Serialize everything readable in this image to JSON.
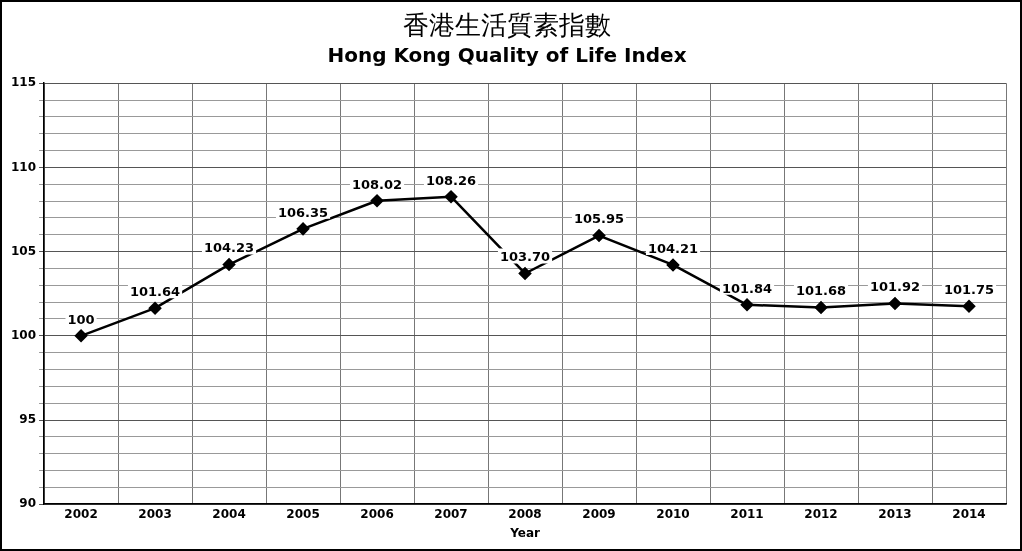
{
  "chart_data": {
    "type": "line",
    "title": "香港生活質素指數",
    "subtitle": "Hong Kong Quality of Life Index",
    "xlabel": "Year",
    "categories": [
      "2002",
      "2003",
      "2004",
      "2005",
      "2006",
      "2007",
      "2008",
      "2009",
      "2010",
      "2011",
      "2012",
      "2013",
      "2014"
    ],
    "series": [
      {
        "color": "#000000",
        "values": [
          100,
          101.64,
          104.23,
          106.35,
          108.02,
          108.26,
          103.7,
          105.95,
          104.21,
          101.84,
          101.68,
          101.92,
          101.75
        ],
        "value_labels": [
          "100",
          "101.64",
          "104.23",
          "106.35",
          "108.02",
          "108.26",
          "103.70",
          "105.95",
          "104.21",
          "101.84",
          "101.68",
          "101.92",
          "101.75"
        ]
      }
    ],
    "ylim": [
      90,
      115
    ],
    "yticks": [
      90,
      {
        "value": 91,
        "label": null
      },
      {
        "value": 92,
        "label": null
      },
      {
        "value": 93,
        "label": null
      },
      {
        "value": 94,
        "label": null
      },
      95,
      {
        "value": 96,
        "label": null
      },
      {
        "value": 97,
        "label": null
      },
      {
        "value": 98,
        "label": null
      },
      {
        "value": 99,
        "label": null
      },
      100,
      {
        "value": 101,
        "label": null
      },
      {
        "value": 102,
        "label": null
      },
      {
        "value": 103,
        "label": null
      },
      {
        "value": 104,
        "label": null
      },
      105,
      {
        "value": 106,
        "label": null
      },
      {
        "value": 107,
        "label": null
      },
      {
        "value": 108,
        "label": null
      },
      {
        "value": 109,
        "label": null
      },
      110,
      {
        "value": 111,
        "label": null
      },
      {
        "value": 112,
        "label": null
      },
      {
        "value": 113,
        "label": null
      },
      {
        "value": 114,
        "label": null
      },
      115
    ],
    "grid": true,
    "legend": false,
    "marker": "diamond",
    "line_style": "solid"
  }
}
